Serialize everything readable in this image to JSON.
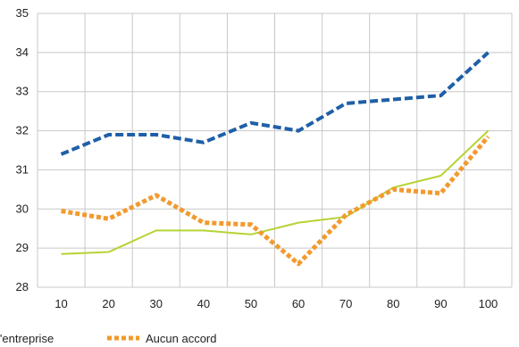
{
  "chart_data": {
    "type": "line",
    "x": [
      10,
      20,
      30,
      40,
      50,
      60,
      70,
      80,
      90,
      100
    ],
    "ylim": [
      28,
      35
    ],
    "yticks": [
      28,
      29,
      30,
      31,
      32,
      33,
      34,
      35
    ],
    "grid": true,
    "legend_placement": "bottom",
    "series": [
      {
        "name": "",
        "color": "#1f5fa8",
        "style": "dashed",
        "values": [
          31.4,
          31.9,
          31.9,
          31.7,
          32.2,
          32.0,
          32.7,
          32.8,
          32.9,
          34.0
        ]
      },
      {
        "name": "",
        "color": "#b5d334",
        "style": "solid",
        "values": [
          28.85,
          28.9,
          29.45,
          29.45,
          29.35,
          29.65,
          29.8,
          30.55,
          30.85,
          32.0
        ]
      },
      {
        "name": "Aucun accord",
        "color": "#f29a2e",
        "style": "dotted",
        "values": [
          29.95,
          29.75,
          30.35,
          29.65,
          29.6,
          28.6,
          29.85,
          30.5,
          30.4,
          31.85
        ]
      }
    ],
    "legend": [
      {
        "label": "l'entreprise",
        "color": "#b5d334",
        "style": "solid"
      },
      {
        "label": "Aucun accord",
        "color": "#f29a2e",
        "style": "dotted"
      }
    ]
  }
}
